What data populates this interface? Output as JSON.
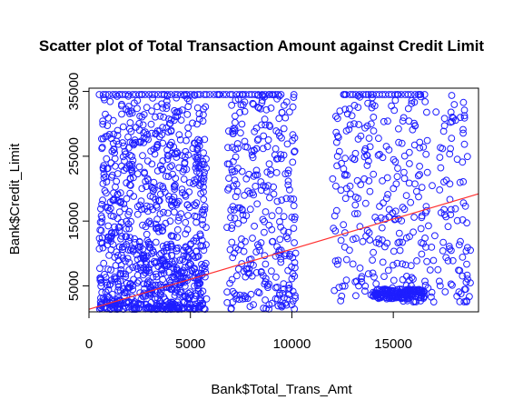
{
  "chart_data": {
    "type": "scatter",
    "title": "Scatter plot of Total Transaction Amount against Credit Limit",
    "xlabel": "Bank$Total_Trans_Amt",
    "ylabel": "Bank$Credit_Limit",
    "xlim": [
      0,
      19200
    ],
    "ylim": [
      1000,
      35500
    ],
    "xticks": [
      0,
      5000,
      10000,
      15000
    ],
    "yticks": [
      5000,
      15000,
      25000,
      35000
    ],
    "grid": false,
    "legend": "none",
    "point_color": "#1e1eff",
    "line_color": "#ff3030",
    "regression_line": {
      "x": [
        0,
        19200
      ],
      "y": [
        1400,
        19200
      ]
    },
    "point_clusters": [
      {
        "x_range": [
          500,
          5800
        ],
        "y_range": [
          1400,
          34516
        ],
        "count": 950,
        "mode": "dense-low"
      },
      {
        "x_range": [
          6800,
          10200
        ],
        "y_range": [
          1400,
          34516
        ],
        "count": 300,
        "mode": "mid"
      },
      {
        "x_range": [
          12000,
          18800
        ],
        "y_range": [
          2500,
          34516
        ],
        "count": 350,
        "mode": "mid"
      },
      {
        "x_range": [
          14000,
          16500
        ],
        "y_range": [
          3000,
          4500
        ],
        "count": 150,
        "mode": "band"
      }
    ],
    "capped_value": 34516,
    "capped_x_ranges": [
      [
        500,
        9500
      ],
      [
        12500,
        16500
      ]
    ],
    "points": [
      [
        1500,
        34516
      ],
      [
        2600,
        34516
      ],
      [
        3700,
        34516
      ],
      [
        4800,
        34516
      ],
      [
        6400,
        34516
      ],
      [
        7600,
        34516
      ],
      [
        8900,
        34516
      ],
      [
        10100,
        34516
      ],
      [
        12600,
        34516
      ],
      [
        13900,
        34516
      ],
      [
        15200,
        34516
      ],
      [
        16300,
        34516
      ],
      [
        1200,
        30500
      ],
      [
        2300,
        27100
      ],
      [
        3100,
        23800
      ],
      [
        4200,
        20400
      ],
      [
        5300,
        17800
      ],
      [
        5600,
        15200
      ],
      [
        1800,
        12600
      ],
      [
        2700,
        9800
      ],
      [
        3600,
        7400
      ],
      [
        4500,
        5200
      ],
      [
        700,
        3100
      ],
      [
        1400,
        1600
      ],
      [
        7200,
        31200
      ],
      [
        7800,
        26400
      ],
      [
        8300,
        22100
      ],
      [
        8900,
        18600
      ],
      [
        9400,
        14900
      ],
      [
        7500,
        11300
      ],
      [
        8100,
        8200
      ],
      [
        8700,
        5600
      ],
      [
        9200,
        3000
      ],
      [
        10000,
        2100
      ],
      [
        12300,
        27900
      ],
      [
        13100,
        24500
      ],
      [
        13800,
        21200
      ],
      [
        14500,
        17800
      ],
      [
        15100,
        15300
      ],
      [
        15800,
        12600
      ],
      [
        16400,
        9900
      ],
      [
        17200,
        7500
      ],
      [
        17900,
        5100
      ],
      [
        18800,
        10500
      ],
      [
        14200,
        3600
      ],
      [
        14900,
        3300
      ],
      [
        15500,
        3900
      ],
      [
        16100,
        3500
      ],
      [
        13600,
        4200
      ],
      [
        16900,
        4000
      ]
    ]
  }
}
